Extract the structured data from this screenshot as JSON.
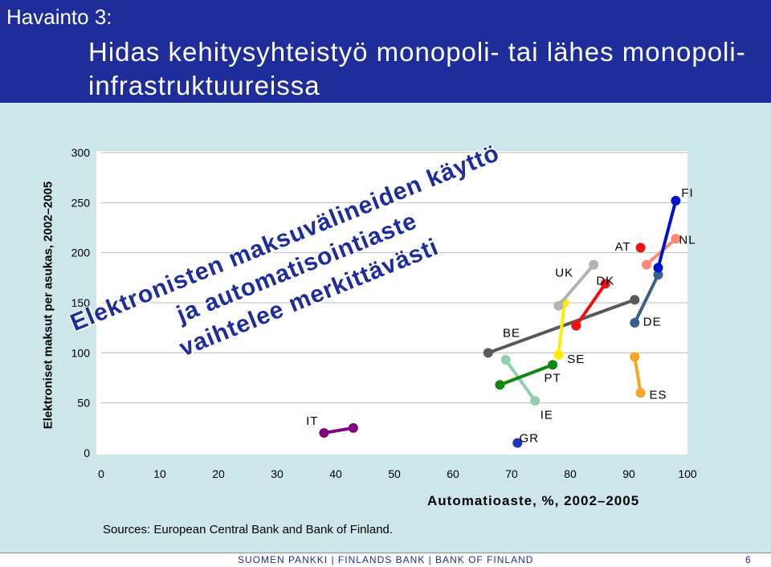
{
  "slide": {
    "kicker": "Havainto 3:",
    "title": "Hidas kehitysyhteistyö monopoli- tai lähes monopoli-infrastruktuureissa",
    "annotation_lines": [
      "Elektronisten maksuvälineiden käyttö",
      "ja automatisointiaste",
      "vaihtelee merkittävästi"
    ],
    "source": "Sources: European Central Bank and Bank of Finland.",
    "footer": "SUOMEN PANKKI | FINLANDS BANK | BANK OF FINLAND",
    "page_number": "6"
  },
  "colors": {
    "header_bg": "#1e2d9a",
    "content_bg": "#cce6ea",
    "annotation_text": "#1e2d9a"
  },
  "chart_data": {
    "type": "line",
    "title": "",
    "xlabel": "Automatioaste, %, 2002–2005",
    "ylabel": "Elektroniset maksut per asukas, 2002–2005",
    "xlim": [
      0,
      100
    ],
    "ylim": [
      0,
      300
    ],
    "x_ticks": [
      0,
      10,
      20,
      30,
      40,
      50,
      60,
      70,
      80,
      90,
      100
    ],
    "y_ticks": [
      0,
      50,
      100,
      150,
      200,
      250,
      300
    ],
    "grid": "horizontal",
    "series": [
      {
        "name": "IT",
        "color": "#800080",
        "points": [
          [
            38,
            20
          ],
          [
            43,
            25
          ]
        ]
      },
      {
        "name": "BE",
        "color": "#595959",
        "points": [
          [
            66,
            100
          ],
          [
            91,
            153
          ]
        ]
      },
      {
        "name": "GR",
        "color": "#2233bb",
        "points": [
          [
            71,
            10
          ]
        ]
      },
      {
        "name": "IE",
        "color": "#90cfa8",
        "points": [
          [
            69,
            93
          ],
          [
            74,
            52
          ]
        ]
      },
      {
        "name": "PT",
        "color": "#118811",
        "points": [
          [
            68,
            68
          ],
          [
            77,
            88
          ]
        ]
      },
      {
        "name": "SE",
        "color": "#ffee00",
        "points": [
          [
            79,
            150
          ],
          [
            78,
            98
          ]
        ]
      },
      {
        "name": "UK",
        "color": "#b3b3b3",
        "points": [
          [
            78,
            147
          ],
          [
            84,
            188
          ]
        ]
      },
      {
        "name": "DK",
        "color": "#ee1111",
        "points": [
          [
            81,
            127
          ],
          [
            86,
            169
          ]
        ]
      },
      {
        "name": "DE",
        "color": "#3a5f8a",
        "points": [
          [
            91,
            130
          ],
          [
            95,
            178
          ]
        ]
      },
      {
        "name": "ES",
        "color": "#f5a623",
        "points": [
          [
            91,
            96
          ],
          [
            92,
            60
          ]
        ]
      },
      {
        "name": "AT",
        "color": "#ee1111",
        "points": [
          [
            92,
            205
          ]
        ]
      },
      {
        "name": "NL",
        "color": "#ff8c70",
        "points": [
          [
            93,
            188
          ],
          [
            98,
            214
          ]
        ]
      },
      {
        "name": "FI",
        "color": "#0011cc",
        "points": [
          [
            95,
            185
          ],
          [
            98,
            252
          ]
        ]
      }
    ],
    "labels": [
      {
        "text": "IT",
        "x": 36,
        "y": 32
      },
      {
        "text": "BE",
        "x": 70,
        "y": 120
      },
      {
        "text": "GR",
        "x": 73,
        "y": 15
      },
      {
        "text": "IE",
        "x": 76,
        "y": 38
      },
      {
        "text": "PT",
        "x": 77,
        "y": 75
      },
      {
        "text": "SE",
        "x": 81,
        "y": 94
      },
      {
        "text": "UK",
        "x": 79,
        "y": 180
      },
      {
        "text": "DK",
        "x": 86,
        "y": 172
      },
      {
        "text": "AT",
        "x": 89,
        "y": 206
      },
      {
        "text": "DE",
        "x": 94,
        "y": 131
      },
      {
        "text": "ES",
        "x": 95,
        "y": 58
      },
      {
        "text": "NL",
        "x": 100,
        "y": 213
      },
      {
        "text": "FI",
        "x": 100,
        "y": 260
      }
    ]
  }
}
